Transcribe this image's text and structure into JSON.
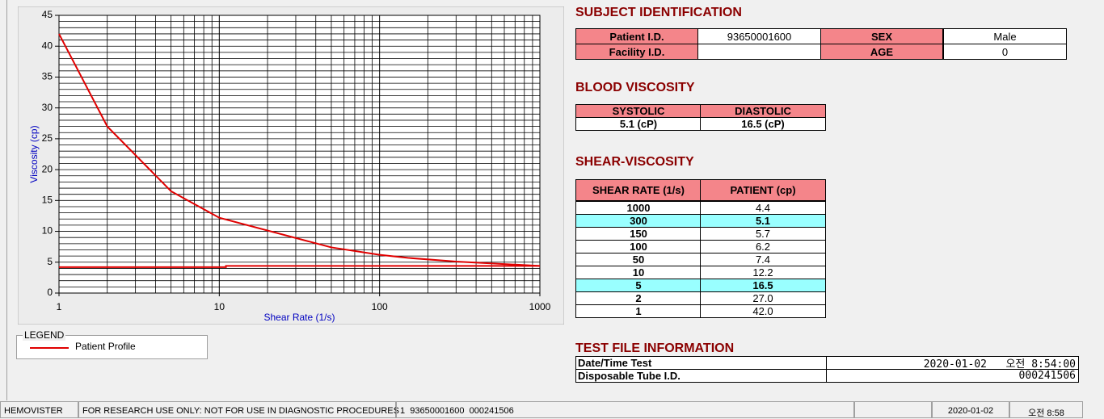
{
  "chart_data": {
    "type": "line",
    "xlabel": "Shear Rate (1/s)",
    "ylabel": "Viscosity (cp)",
    "xscale": "log",
    "xlim": [
      1,
      1000
    ],
    "xticks": [
      1,
      10,
      100,
      1000
    ],
    "ylim": [
      0,
      45
    ],
    "yticks": [
      0,
      5,
      10,
      15,
      20,
      25,
      30,
      35,
      40,
      45
    ],
    "yminor_step": 1,
    "grid": true,
    "series": [
      {
        "name": "Patient Profile",
        "color": "#e00000",
        "x": [
          1,
          2,
          5,
          10,
          50,
          100,
          150,
          300,
          1000
        ],
        "values": [
          42.0,
          27.0,
          16.5,
          12.2,
          7.4,
          6.2,
          5.7,
          5.1,
          4.4
        ]
      },
      {
        "color": "#e00000",
        "x": [
          1,
          11,
          11,
          1000
        ],
        "values": [
          4.2,
          4.2,
          4.4,
          4.4
        ]
      }
    ],
    "legend_title": "LEGEND"
  },
  "subject_identification": {
    "title": "SUBJECT IDENTIFICATION",
    "fields": [
      {
        "label": "Patient I.D.",
        "value": "93650001600"
      },
      {
        "label": "SEX",
        "value": "Male"
      },
      {
        "label": "Facility I.D."
      },
      {
        "label": "AGE",
        "value": "0"
      }
    ]
  },
  "blood_viscosity": {
    "title": "BLOOD VISCOSITY",
    "headers": [
      "SYSTOLIC",
      "DIASTOLIC"
    ],
    "values": [
      "5.1 (cP)",
      "16.5 (cP)"
    ]
  },
  "shear_viscosity": {
    "title": "SHEAR-VISCOSITY",
    "headers": [
      "SHEAR RATE (1/s)",
      "PATIENT (cp)"
    ],
    "rows": [
      [
        "1000",
        "4.4"
      ],
      [
        "300",
        "5.1"
      ],
      [
        "150",
        "5.7"
      ],
      [
        "100",
        "6.2"
      ],
      [
        "50",
        "7.4"
      ],
      [
        "10",
        "12.2"
      ],
      [
        "5",
        "16.5"
      ],
      [
        "2",
        "27.0"
      ],
      [
        "1",
        "42.0"
      ]
    ],
    "highlighted_rows": [
      1,
      6
    ]
  },
  "test_file": {
    "title": "TEST FILE INFORMATION",
    "rows": [
      [
        "Date/Time Test",
        "2020-01-02   오전 8:54:00"
      ],
      [
        "Disposable Tube I.D.",
        "000241506"
      ]
    ]
  },
  "status_bar": [
    "HEMOVISTER",
    "FOR RESEARCH USE ONLY: NOT FOR USE IN DIAGNOSTIC PROCEDURES",
    "1  93650001600  000241506",
    "2020-01-02",
    "오전 8:58"
  ]
}
